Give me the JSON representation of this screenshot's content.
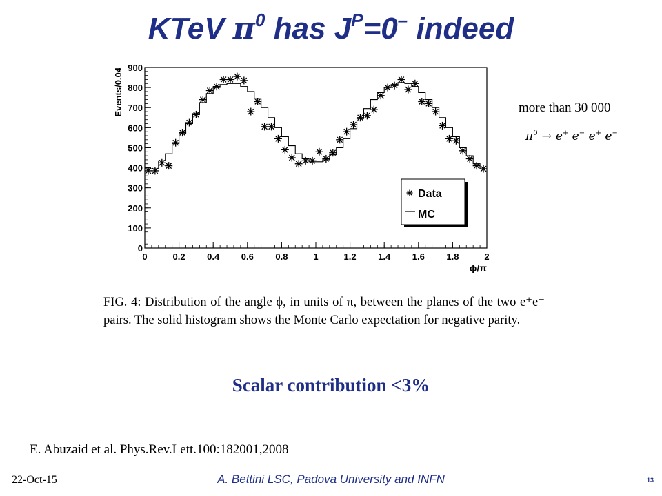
{
  "slide": {
    "title_pre": "KTeV ",
    "title_pi": "π",
    "title_pi_sup": "0",
    "title_mid": " has J",
    "title_p_sup": "P",
    "title_post": "=0",
    "title_minus_sup": "–",
    "title_end": " indeed"
  },
  "side": {
    "note": "more than 30 000",
    "formula": {
      "pi": "π",
      "pi_sup": "0",
      "arrow": "→",
      "e1": "e",
      "e1_sup": "+",
      "e2": "e",
      "e2_sup": "−",
      "e3": "e",
      "e3_sup": "+",
      "e4": "e",
      "e4_sup": "−"
    }
  },
  "caption": "FIG. 4: Distribution of the angle ϕ, in units of π, between the planes of the two e⁺e⁻ pairs. The solid histogram shows the Monte Carlo expectation for negative parity.",
  "conclusion": "Scalar contribution <3%",
  "reference": "E. Abuzaid et al. Phys.Rev.Lett.100:182001,2008",
  "footer": {
    "date": "22-Oct-15",
    "center": "A. Bettini LSC, Padova University and INFN",
    "page": "13"
  },
  "chart_data": {
    "type": "scatter",
    "xlabel": "ϕ/π",
    "ylabel": "Events/0.04",
    "xlim": [
      0,
      2
    ],
    "ylim": [
      0,
      900
    ],
    "xticks": [
      "0",
      "0.2",
      "0.4",
      "0.6",
      "0.8",
      "1",
      "1.2",
      "1.4",
      "1.6",
      "1.8",
      "2"
    ],
    "yticks": [
      "0",
      "100",
      "200",
      "300",
      "400",
      "500",
      "600",
      "700",
      "800",
      "900"
    ],
    "legend": {
      "placement": "right",
      "entries": [
        "Data",
        "MC"
      ]
    },
    "colors": {
      "axes": "#000000",
      "marks": "#000000"
    },
    "series": [
      {
        "name": "Data",
        "marker": "asterisk",
        "x": [
          0.02,
          0.06,
          0.1,
          0.14,
          0.18,
          0.22,
          0.26,
          0.3,
          0.34,
          0.38,
          0.42,
          0.46,
          0.5,
          0.54,
          0.58,
          0.62,
          0.66,
          0.7,
          0.74,
          0.78,
          0.82,
          0.86,
          0.9,
          0.94,
          0.98,
          1.02,
          1.06,
          1.1,
          1.14,
          1.18,
          1.22,
          1.26,
          1.3,
          1.34,
          1.38,
          1.42,
          1.46,
          1.5,
          1.54,
          1.58,
          1.62,
          1.66,
          1.7,
          1.74,
          1.78,
          1.82,
          1.86,
          1.9,
          1.94,
          1.98
        ],
        "y": [
          385,
          385,
          425,
          410,
          525,
          575,
          625,
          665,
          740,
          785,
          805,
          840,
          840,
          855,
          835,
          680,
          730,
          605,
          605,
          545,
          490,
          450,
          420,
          435,
          435,
          480,
          445,
          475,
          540,
          580,
          615,
          650,
          660,
          690,
          760,
          800,
          810,
          840,
          790,
          820,
          730,
          720,
          680,
          610,
          545,
          535,
          485,
          445,
          410,
          395
        ]
      },
      {
        "name": "MC",
        "style": "step-histogram",
        "bin_edges": [
          0,
          0.04,
          0.08,
          0.12,
          0.16,
          0.2,
          0.24,
          0.28,
          0.32,
          0.36,
          0.4,
          0.44,
          0.48,
          0.52,
          0.56,
          0.6,
          0.64,
          0.68,
          0.72,
          0.76,
          0.8,
          0.84,
          0.88,
          0.92,
          0.96,
          1.0,
          1.04,
          1.08,
          1.12,
          1.16,
          1.2,
          1.24,
          1.28,
          1.32,
          1.36,
          1.4,
          1.44,
          1.48,
          1.52,
          1.56,
          1.6,
          1.64,
          1.68,
          1.72,
          1.76,
          1.8,
          1.84,
          1.88,
          1.92,
          1.96,
          2.0
        ],
        "values": [
          395,
          395,
          435,
          470,
          520,
          570,
          620,
          670,
          725,
          770,
          800,
          815,
          820,
          820,
          805,
          780,
          745,
          700,
          650,
          600,
          555,
          510,
          470,
          445,
          430,
          430,
          440,
          465,
          500,
          545,
          595,
          645,
          695,
          740,
          775,
          800,
          815,
          825,
          820,
          805,
          775,
          740,
          700,
          650,
          600,
          555,
          500,
          460,
          420,
          395
        ]
      }
    ]
  }
}
